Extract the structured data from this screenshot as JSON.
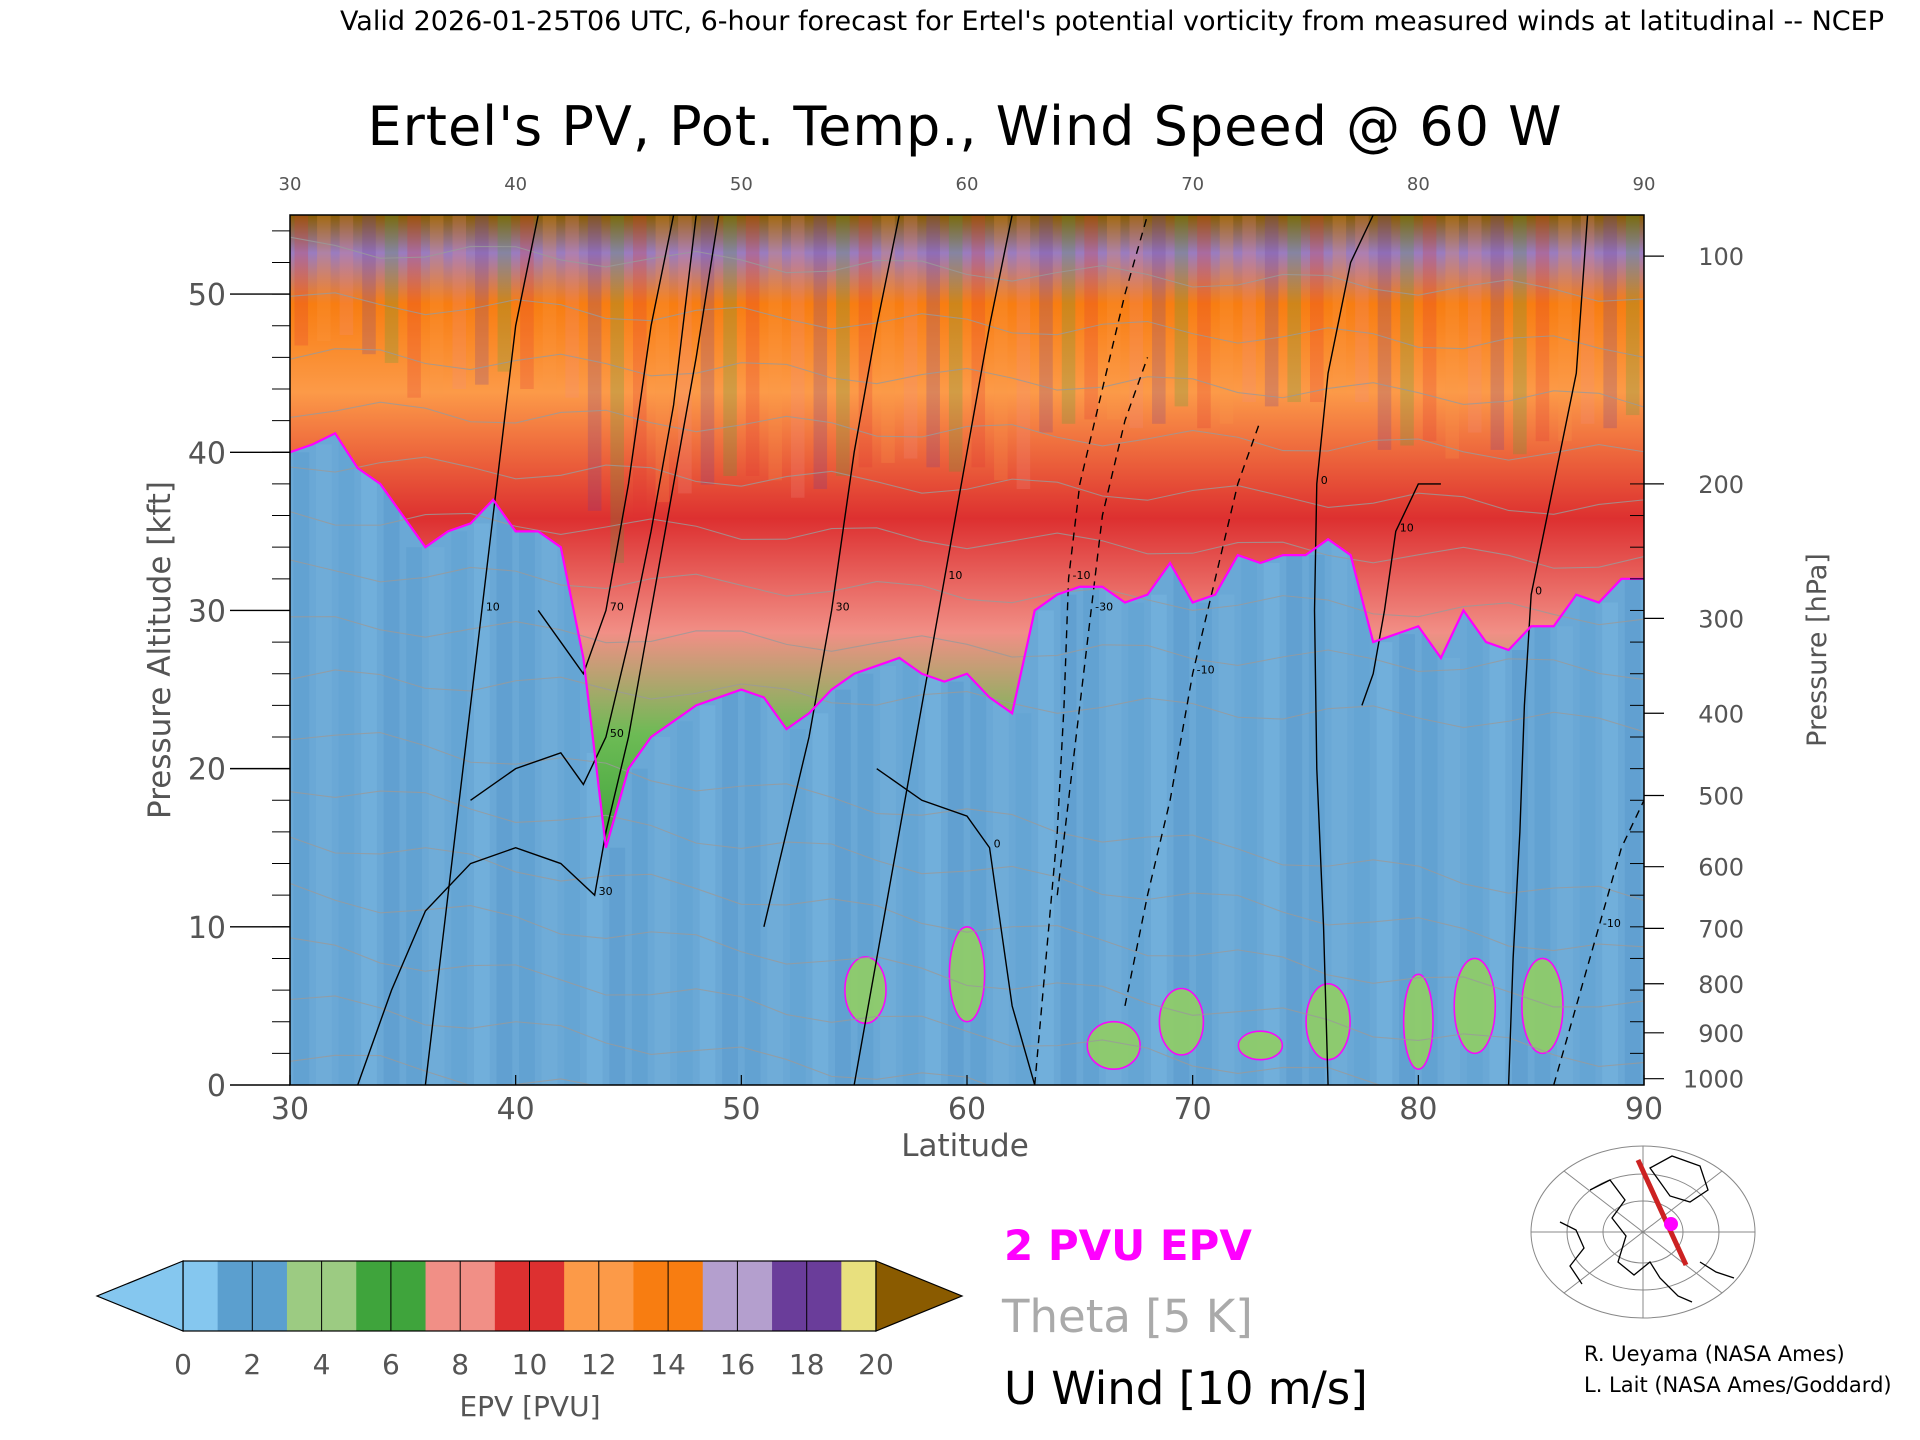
{
  "header": {
    "valid_line": "Valid 2026-01-25T06 UTC, 6-hour forecast for Ertel's potential vorticity from measured winds at latitudinal -- NCEP"
  },
  "chart_data": {
    "type": "heatmap",
    "title": "Ertel's PV, Pot. Temp., Wind Speed @ 60 W",
    "xlabel": "Latitude",
    "ylabel_left": "Pressure Altitude [kft]",
    "ylabel_right": "Pressure [hPa]",
    "xlim": [
      30,
      90
    ],
    "ylim": [
      0,
      55
    ],
    "x_ticks": [
      "30",
      "40",
      "50",
      "60",
      "70",
      "80",
      "90"
    ],
    "x_ticks_top": [
      "30",
      "40",
      "50",
      "60",
      "70",
      "80",
      "90"
    ],
    "y_ticks_left": [
      {
        "value": 0,
        "label": "0"
      },
      {
        "value": 10,
        "label": "10"
      },
      {
        "value": 20,
        "label": "20"
      },
      {
        "value": 30,
        "label": "30"
      },
      {
        "value": 40,
        "label": "40"
      },
      {
        "value": 50,
        "label": "50"
      }
    ],
    "y_ticks_right": [
      {
        "kft": 52.4,
        "label": "100"
      },
      {
        "kft": 38.0,
        "label": "200"
      },
      {
        "kft": 29.5,
        "label": "300"
      },
      {
        "kft": 23.5,
        "label": "400"
      },
      {
        "kft": 18.3,
        "label": "500"
      },
      {
        "kft": 13.8,
        "label": "600"
      },
      {
        "kft": 9.9,
        "label": "700"
      },
      {
        "kft": 6.4,
        "label": "800"
      },
      {
        "kft": 3.3,
        "label": "900"
      },
      {
        "kft": 0.4,
        "label": "1000"
      }
    ],
    "tropopause_2pvu": {
      "name": "2 PVU EPV",
      "color": "#ff00ff",
      "points": [
        [
          30,
          40
        ],
        [
          31,
          40.5
        ],
        [
          32,
          41.2
        ],
        [
          33,
          39
        ],
        [
          34,
          38
        ],
        [
          36,
          34
        ],
        [
          37,
          35
        ],
        [
          38,
          35.5
        ],
        [
          39,
          37
        ],
        [
          40,
          35
        ],
        [
          41,
          35
        ],
        [
          42,
          34
        ],
        [
          43,
          27
        ],
        [
          43.5,
          21
        ],
        [
          44,
          15
        ],
        [
          45,
          20
        ],
        [
          46,
          22
        ],
        [
          47,
          23
        ],
        [
          48,
          24
        ],
        [
          50,
          25
        ],
        [
          51,
          24.5
        ],
        [
          52,
          22.5
        ],
        [
          53,
          23.5
        ],
        [
          54,
          25
        ],
        [
          55,
          26
        ],
        [
          56,
          26.5
        ],
        [
          57,
          27
        ],
        [
          58,
          26
        ],
        [
          59,
          25.5
        ],
        [
          60,
          26
        ],
        [
          61,
          24.5
        ],
        [
          62,
          23.5
        ],
        [
          63,
          30
        ],
        [
          64,
          31
        ],
        [
          65,
          31.5
        ],
        [
          66,
          31.5
        ],
        [
          67,
          30.5
        ],
        [
          68,
          31
        ],
        [
          69,
          33
        ],
        [
          70,
          30.5
        ],
        [
          71,
          31
        ],
        [
          72,
          33.5
        ],
        [
          73,
          33
        ],
        [
          74,
          33.5
        ],
        [
          75,
          33.5
        ],
        [
          76,
          34.5
        ],
        [
          77,
          33.5
        ],
        [
          78,
          28
        ],
        [
          79,
          28.5
        ],
        [
          80,
          29
        ],
        [
          81,
          27
        ],
        [
          82,
          30
        ],
        [
          83,
          28
        ],
        [
          84,
          27.5
        ],
        [
          85,
          29
        ],
        [
          86,
          29
        ],
        [
          87,
          31
        ],
        [
          88,
          30.5
        ],
        [
          89,
          32
        ],
        [
          90,
          32
        ]
      ]
    },
    "surface_pv_patches": [
      {
        "lat": 55.5,
        "kft": 6,
        "w": 1.4,
        "h": 3.5
      },
      {
        "lat": 60,
        "kft": 7,
        "w": 1.2,
        "h": 5
      },
      {
        "lat": 66.5,
        "kft": 2.5,
        "w": 1.8,
        "h": 2.5
      },
      {
        "lat": 69.5,
        "kft": 4,
        "w": 1.5,
        "h": 3.5
      },
      {
        "lat": 73,
        "kft": 2.5,
        "w": 1.5,
        "h": 1.5
      },
      {
        "lat": 76,
        "kft": 4,
        "w": 1.5,
        "h": 4
      },
      {
        "lat": 80,
        "kft": 4,
        "w": 1.0,
        "h": 5
      },
      {
        "lat": 82.5,
        "kft": 5,
        "w": 1.4,
        "h": 5
      },
      {
        "lat": 85.5,
        "kft": 5,
        "w": 1.4,
        "h": 5
      }
    ],
    "u_wind_contours": [
      {
        "level": "10",
        "points": [
          [
            36,
            0
          ],
          [
            36.5,
            6
          ],
          [
            37,
            12
          ],
          [
            37.5,
            18
          ],
          [
            38,
            24
          ],
          [
            38.5,
            30
          ],
          [
            39,
            36
          ],
          [
            39.5,
            42
          ],
          [
            40,
            48
          ],
          [
            41,
            55
          ]
        ]
      },
      {
        "level": "30",
        "points": [
          [
            33,
            0
          ],
          [
            34.5,
            6
          ],
          [
            36,
            11
          ],
          [
            38,
            14
          ],
          [
            40,
            15
          ],
          [
            42,
            14
          ],
          [
            43.5,
            12
          ],
          [
            44,
            16
          ],
          [
            45,
            22
          ],
          [
            46,
            30
          ],
          [
            47,
            38
          ],
          [
            48,
            46
          ],
          [
            49,
            55
          ]
        ]
      },
      {
        "level": "50",
        "points": [
          [
            38,
            18
          ],
          [
            40,
            20
          ],
          [
            42,
            21
          ],
          [
            43,
            19
          ],
          [
            44,
            22
          ],
          [
            45,
            28
          ],
          [
            46,
            35
          ],
          [
            47,
            43
          ],
          [
            48,
            55
          ]
        ]
      },
      {
        "level": "70",
        "points": [
          [
            41,
            30
          ],
          [
            42,
            28
          ],
          [
            43,
            26
          ],
          [
            44,
            30
          ],
          [
            45,
            38
          ],
          [
            46,
            48
          ],
          [
            47,
            55
          ]
        ]
      },
      {
        "level": "30",
        "points": [
          [
            51,
            10
          ],
          [
            52,
            16
          ],
          [
            53,
            22
          ],
          [
            54,
            30
          ],
          [
            55,
            40
          ],
          [
            56,
            48
          ],
          [
            57,
            55
          ]
        ]
      },
      {
        "level": "10",
        "points": [
          [
            55,
            0
          ],
          [
            56,
            8
          ],
          [
            57,
            16
          ],
          [
            58,
            24
          ],
          [
            59,
            32
          ],
          [
            60,
            40
          ],
          [
            61,
            48
          ],
          [
            62,
            55
          ]
        ]
      },
      {
        "level": "0",
        "points": [
          [
            56,
            20
          ],
          [
            58,
            18
          ],
          [
            60,
            17
          ],
          [
            61,
            15
          ],
          [
            61.5,
            10
          ],
          [
            62,
            5
          ],
          [
            63,
            0
          ]
        ]
      },
      {
        "level": "0",
        "points": [
          [
            76,
            0
          ],
          [
            75.8,
            10
          ],
          [
            75.5,
            20
          ],
          [
            75.4,
            30
          ],
          [
            75.5,
            38
          ],
          [
            76,
            45
          ],
          [
            77,
            52
          ],
          [
            78,
            55
          ]
        ]
      },
      {
        "level": "10",
        "points": [
          [
            77.5,
            24
          ],
          [
            78,
            26
          ],
          [
            78.5,
            30
          ],
          [
            79,
            35
          ],
          [
            80,
            38
          ],
          [
            81,
            38
          ]
        ]
      },
      {
        "level": "0",
        "points": [
          [
            84,
            0
          ],
          [
            84.2,
            8
          ],
          [
            84.5,
            16
          ],
          [
            84.7,
            24
          ],
          [
            85,
            31
          ],
          [
            86,
            38
          ],
          [
            87,
            45
          ],
          [
            87.5,
            55
          ]
        ]
      }
    ],
    "u_wind_negative_contours": [
      {
        "level": "-10",
        "points": [
          [
            63,
            0
          ],
          [
            63.5,
            8
          ],
          [
            64,
            16
          ],
          [
            64.3,
            24
          ],
          [
            64.5,
            32
          ],
          [
            65,
            38
          ],
          [
            66,
            44
          ],
          [
            67,
            50
          ],
          [
            68,
            55
          ]
        ]
      },
      {
        "level": "-30",
        "points": [
          [
            64,
            12
          ],
          [
            64.5,
            18
          ],
          [
            65,
            24
          ],
          [
            65.5,
            30
          ],
          [
            66,
            36
          ],
          [
            67,
            42
          ],
          [
            68,
            46
          ]
        ]
      },
      {
        "level": "-10",
        "points": [
          [
            67,
            5
          ],
          [
            68,
            12
          ],
          [
            69,
            18
          ],
          [
            70,
            26
          ],
          [
            71,
            32
          ],
          [
            72,
            38
          ],
          [
            73,
            42
          ]
        ]
      },
      {
        "level": "-10",
        "points": [
          [
            86,
            0
          ],
          [
            87,
            5
          ],
          [
            88,
            10
          ],
          [
            89,
            15
          ],
          [
            90,
            18
          ]
        ]
      }
    ],
    "theta_contours_k": [
      280,
      285,
      290,
      295,
      300,
      305,
      310,
      320,
      330,
      340,
      350,
      360,
      370,
      380,
      390,
      400
    ],
    "colorbar": {
      "label": "EPV [PVU]",
      "min": 0,
      "max": 20,
      "ticks": [
        "0",
        "2",
        "4",
        "6",
        "8",
        "10",
        "12",
        "14",
        "16",
        "18",
        "20"
      ],
      "colors": [
        "#85c7ef",
        "#5b9fcf",
        "#9ccb82",
        "#3fa43c",
        "#f18f86",
        "#dd3030",
        "#fc9a48",
        "#f87d11",
        "#b49fce",
        "#6a3d9a",
        "#e8e07e",
        "#8a5b00"
      ]
    },
    "legend": {
      "epv_line": "2 PVU EPV",
      "epv_color": "#ff00ff",
      "theta": "Theta [5 K]",
      "theta_color": "#aaaaaa",
      "wind": "U Wind [10 m/s]",
      "wind_color": "#000000"
    },
    "credits": [
      "R. Ueyama (NASA Ames)",
      "L. Lait (NASA Ames/Goddard)"
    ],
    "inset_map": {
      "track_color": "#cc2222",
      "marker_color": "#ff00ff"
    }
  }
}
